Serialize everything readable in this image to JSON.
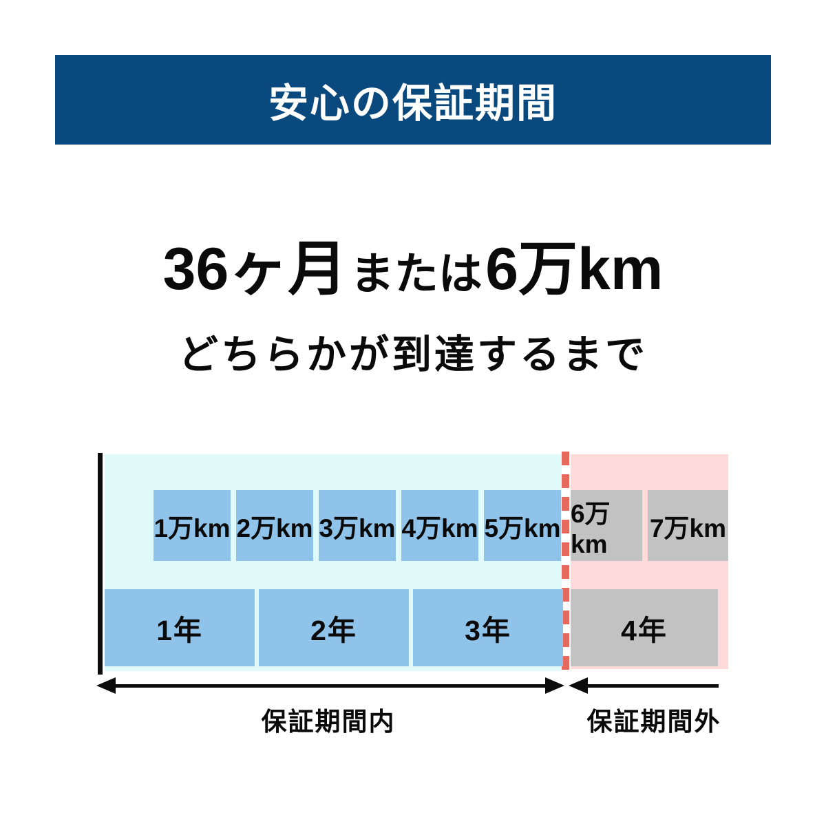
{
  "banner": {
    "title": "安心の保証期間"
  },
  "headline": {
    "part1": "36ヶ月",
    "part2": "または",
    "part3": "6万km",
    "line2": "どちらかが到達するまで"
  },
  "timeline": {
    "km_boxes": [
      {
        "label": "1万km",
        "status": "in-warranty"
      },
      {
        "label": "2万km",
        "status": "in-warranty"
      },
      {
        "label": "3万km",
        "status": "in-warranty"
      },
      {
        "label": "4万km",
        "status": "in-warranty"
      },
      {
        "label": "5万km",
        "status": "in-warranty"
      },
      {
        "label": "6万km",
        "status": "out-of-warranty"
      },
      {
        "label": "7万km",
        "status": "out-of-warranty"
      }
    ],
    "year_boxes": [
      {
        "label": "1年",
        "status": "in-warranty"
      },
      {
        "label": "2年",
        "status": "in-warranty"
      },
      {
        "label": "3年",
        "status": "in-warranty"
      },
      {
        "label": "4年",
        "status": "out-of-warranty"
      }
    ],
    "in_warranty_label": "保証期間内",
    "out_warranty_label": "保証期間外",
    "colors": {
      "banner_blue": "#09497d",
      "in_warranty_background": "#e0fafa",
      "out_warranty_background": "#ffdada",
      "in_warranty_box": "#90c3ea",
      "out_warranty_box": "#c2c2c2",
      "divider_dash_red": "#e7695d"
    }
  }
}
